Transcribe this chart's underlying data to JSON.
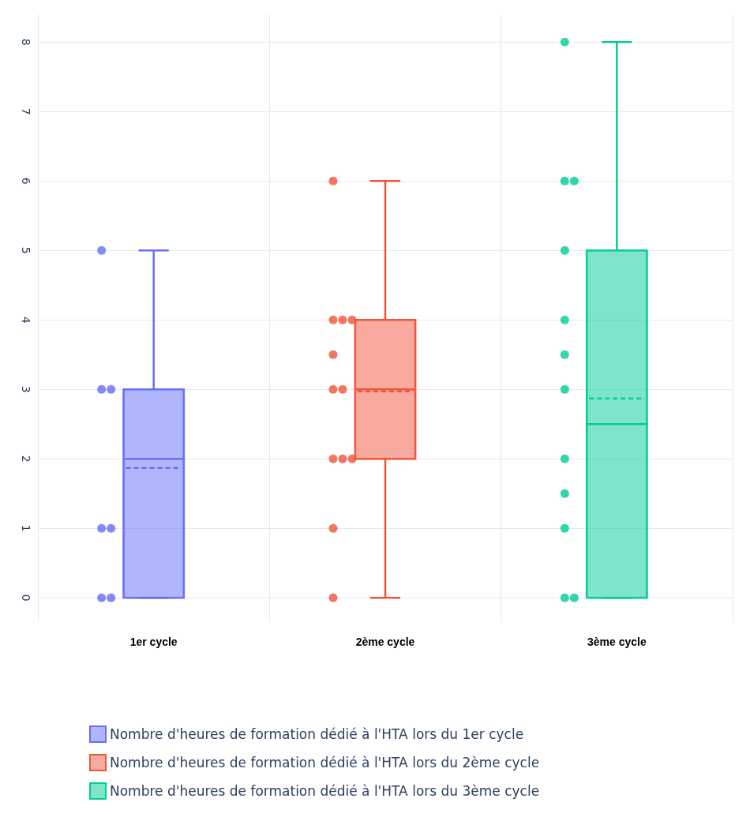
{
  "chart_data": {
    "type": "box",
    "categories": [
      "1er cycle",
      "2ème cycle",
      "3ème cycle"
    ],
    "ylim": [
      -0.35,
      8.4
    ],
    "yticks": [
      0,
      1,
      2,
      3,
      4,
      5,
      6,
      7,
      8
    ],
    "grid": true,
    "legend": "bottom",
    "marker": "circle",
    "series": [
      {
        "name": "Nombre d'heures de formation dédié à l'HTA lors du 1er cycle",
        "color": "#636efa",
        "boxes": [
          {
            "low": 0,
            "q1": 0,
            "median": 2,
            "q3": 3,
            "high": 5,
            "mean": 1.87
          },
          null,
          null
        ]
      },
      {
        "name": "Nombre d'heures de formation dédié à l'HTA lors du 2ème cycle",
        "color": "#ef553b",
        "boxes": [
          null,
          {
            "low": 0,
            "q1": 2,
            "median": 3,
            "q3": 4,
            "high": 6,
            "mean": 2.97
          },
          null
        ]
      },
      {
        "name": "Nombre d'heures de formation dédié à l'HTA lors du 3ème cycle",
        "color": "#00cc96",
        "boxes": [
          null,
          null,
          {
            "low": 0,
            "q1": 0,
            "median": 2.5,
            "q3": 5,
            "high": 8,
            "mean": 2.87
          }
        ]
      },
      {
        "type": "scatter",
        "color": "#636efa",
        "x": [
          "1er cycle",
          "1er cycle",
          "1er cycle",
          "1er cycle",
          "1er cycle",
          "1er cycle",
          "1er cycle"
        ],
        "values": [
          5,
          3,
          3,
          1,
          1,
          0,
          0
        ]
      },
      {
        "type": "scatter",
        "color": "#ef553b",
        "x": [
          "2ème cycle",
          "2ème cycle",
          "2ème cycle",
          "2ème cycle",
          "2ème cycle",
          "2ème cycle",
          "2ème cycle",
          "2ème cycle",
          "2ème cycle",
          "2ème cycle",
          "2ème cycle",
          "2ème cycle"
        ],
        "values": [
          6,
          4,
          4,
          4,
          3.5,
          3,
          3,
          2,
          2,
          2,
          1,
          0
        ]
      },
      {
        "type": "scatter",
        "color": "#00cc96",
        "x": [
          "3ème cycle",
          "3ème cycle",
          "3ème cycle",
          "3ème cycle",
          "3ème cycle",
          "3ème cycle",
          "3ème cycle",
          "3ème cycle",
          "3ème cycle",
          "3ème cycle",
          "3ème cycle",
          "3ème cycle"
        ],
        "values": [
          8,
          6,
          6,
          5,
          4,
          3.5,
          3,
          2,
          1.5,
          1,
          0,
          0
        ]
      }
    ]
  }
}
